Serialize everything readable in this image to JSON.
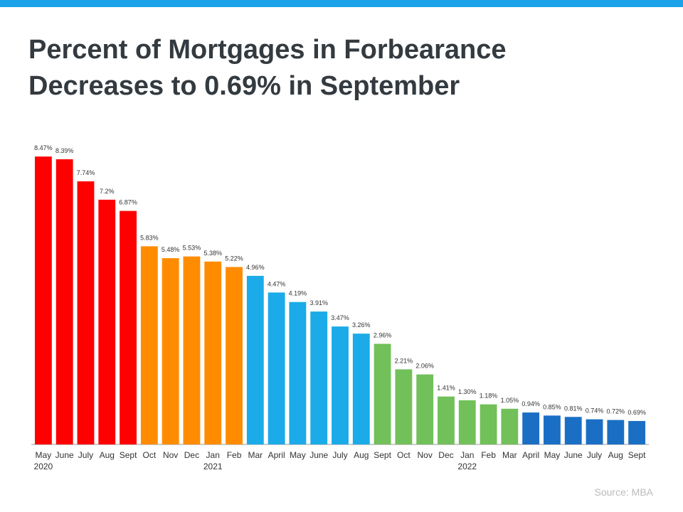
{
  "chart_data": {
    "type": "bar",
    "title_lines": [
      "Percent of Mortgages in Forbearance",
      "Decreases to 0.69% in September"
    ],
    "source": "Source: MBA",
    "categories": [
      "May",
      "June",
      "July",
      "Aug",
      "Sept",
      "Oct",
      "Nov",
      "Dec",
      "Jan",
      "Feb",
      "Mar",
      "April",
      "May",
      "June",
      "July",
      "Aug",
      "Sept",
      "Oct",
      "Nov",
      "Dec",
      "Jan",
      "Feb",
      "Mar",
      "April",
      "May",
      "June",
      "July",
      "Aug",
      "Sept"
    ],
    "category_years": [
      "2020",
      null,
      null,
      null,
      null,
      null,
      null,
      null,
      "2021",
      null,
      null,
      null,
      null,
      null,
      null,
      null,
      null,
      null,
      null,
      null,
      "2022",
      null,
      null,
      null,
      null,
      null,
      null,
      null,
      null
    ],
    "values": [
      8.47,
      8.39,
      7.74,
      7.2,
      6.87,
      5.83,
      5.48,
      5.53,
      5.38,
      5.22,
      4.96,
      4.47,
      4.19,
      3.91,
      3.47,
      3.26,
      2.96,
      2.21,
      2.06,
      1.41,
      1.3,
      1.18,
      1.05,
      0.94,
      0.85,
      0.81,
      0.74,
      0.72,
      0.69
    ],
    "value_labels": [
      "8.47%",
      "8.39%",
      "7.74%",
      "7.2%",
      "6.87%",
      "5.83%",
      "5.48%",
      "5.53%",
      "5.38%",
      "5.22%",
      "4.96%",
      "4.47%",
      "4.19%",
      "3.91%",
      "3.47%",
      "3.26%",
      "2.96%",
      "2.21%",
      "2.06%",
      "1.41%",
      "1.30%",
      "1.18%",
      "1.05%",
      "0.94%",
      "0.85%",
      "0.81%",
      "0.74%",
      "0.72%",
      "0.69%"
    ],
    "colors": [
      "#ff0000",
      "#ff0000",
      "#ff0000",
      "#ff0000",
      "#ff0000",
      "#ff8c00",
      "#ff8c00",
      "#ff8c00",
      "#ff8c00",
      "#ff8c00",
      "#1aabe8",
      "#1aabe8",
      "#1aabe8",
      "#1aabe8",
      "#1aabe8",
      "#1aabe8",
      "#72c05a",
      "#72c05a",
      "#72c05a",
      "#72c05a",
      "#72c05a",
      "#72c05a",
      "#72c05a",
      "#1a6fc4",
      "#1a6fc4",
      "#1a6fc4",
      "#1a6fc4",
      "#1a6fc4",
      "#1a6fc4"
    ]
  }
}
